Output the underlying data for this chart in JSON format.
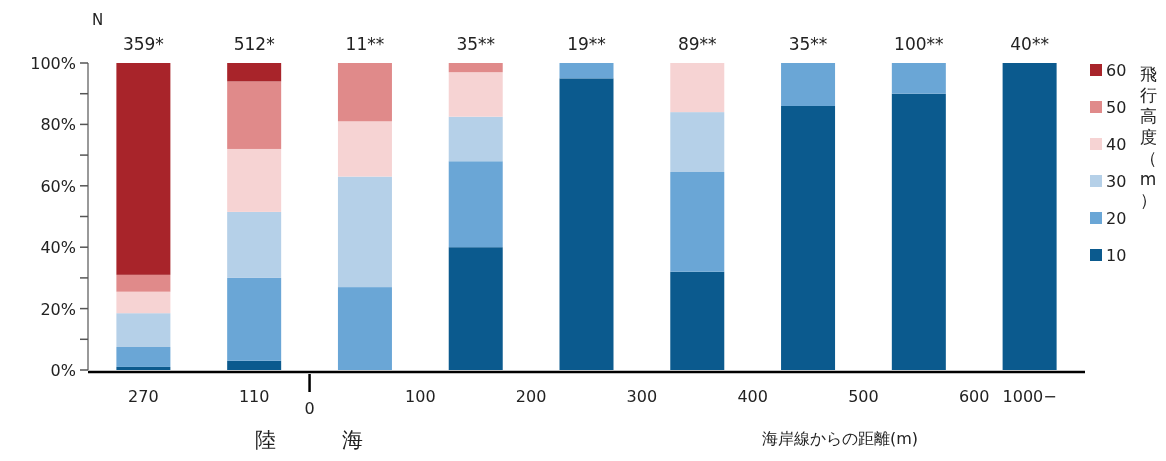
{
  "chart_data": {
    "type": "bar",
    "stacked": true,
    "categories": [
      "270",
      "110",
      null,
      null,
      null,
      null,
      null,
      null,
      null
    ],
    "series": [
      {
        "name": "10",
        "color": "#0b5a8e",
        "values": [
          1,
          3,
          0,
          40,
          95,
          32,
          86,
          90,
          100
        ]
      },
      {
        "name": "20",
        "color": "#6aa6d6",
        "values": [
          6.5,
          27,
          27,
          28,
          5,
          32.5,
          14,
          10,
          0
        ]
      },
      {
        "name": "30",
        "color": "#b5d0e8",
        "values": [
          11,
          21.5,
          36,
          14.5,
          0,
          19.5,
          0,
          0,
          0
        ]
      },
      {
        "name": "40",
        "color": "#f6d3d3",
        "values": [
          7,
          20.5,
          18,
          14.5,
          0,
          16,
          0,
          0,
          0
        ]
      },
      {
        "name": "50",
        "color": "#e08a8a",
        "values": [
          5.5,
          22,
          19,
          3,
          0,
          0,
          0,
          0,
          0
        ]
      },
      {
        "name": "60",
        "color": "#a8242a",
        "values": [
          69,
          6,
          0,
          0,
          0,
          0,
          0,
          0,
          0
        ]
      }
    ],
    "ylim": [
      0,
      100
    ],
    "yticks": [
      {
        "value": 0,
        "label": "0%"
      },
      {
        "value": 10,
        "label": null
      },
      {
        "value": 20,
        "label": "20%"
      },
      {
        "value": 30,
        "label": null
      },
      {
        "value": 40,
        "label": "40%"
      },
      {
        "value": 50,
        "label": null
      },
      {
        "value": 60,
        "label": "60%"
      },
      {
        "value": 70,
        "label": null
      },
      {
        "value": 80,
        "label": "80%"
      },
      {
        "value": 90,
        "label": null
      },
      {
        "value": 100,
        "label": "100%"
      }
    ],
    "xlabel": "海岸線からの距離(m)",
    "legend_title": "飛行高度（m）",
    "legend": "right",
    "annotations": [
      "N",
      "359*",
      "512*",
      "11**",
      "35**",
      "19**",
      "89**",
      "35**",
      "100**",
      "40**",
      "0",
      "100",
      "200",
      "300",
      "400",
      "500",
      "600",
      "1000−",
      "陸",
      "海"
    ]
  }
}
